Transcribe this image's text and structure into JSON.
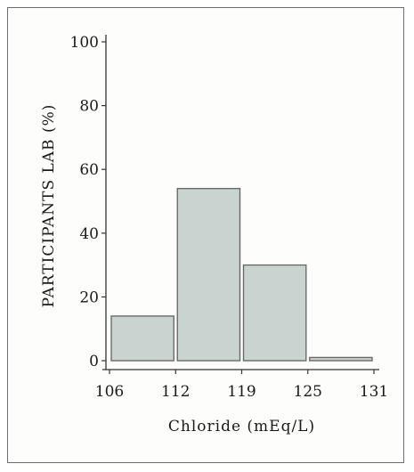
{
  "chart_data": {
    "type": "bar",
    "title": "",
    "xlabel": "Chloride (mEq/L)",
    "ylabel": "PARTICIPANTS LAB (%)",
    "ylim": [
      0,
      100
    ],
    "yticks": [
      0,
      20,
      40,
      60,
      80,
      100
    ],
    "bin_edges": [
      "106",
      "112",
      "119",
      "125",
      "131"
    ],
    "values": [
      14,
      54,
      30,
      1
    ],
    "grid": false,
    "legend": "none",
    "colors": {
      "bar_fill": "#c9d3cf",
      "bar_stroke": "#6a6a6a",
      "axis": "#333333",
      "text": "#1a1a1a",
      "frame": "#6e6e6e"
    }
  }
}
